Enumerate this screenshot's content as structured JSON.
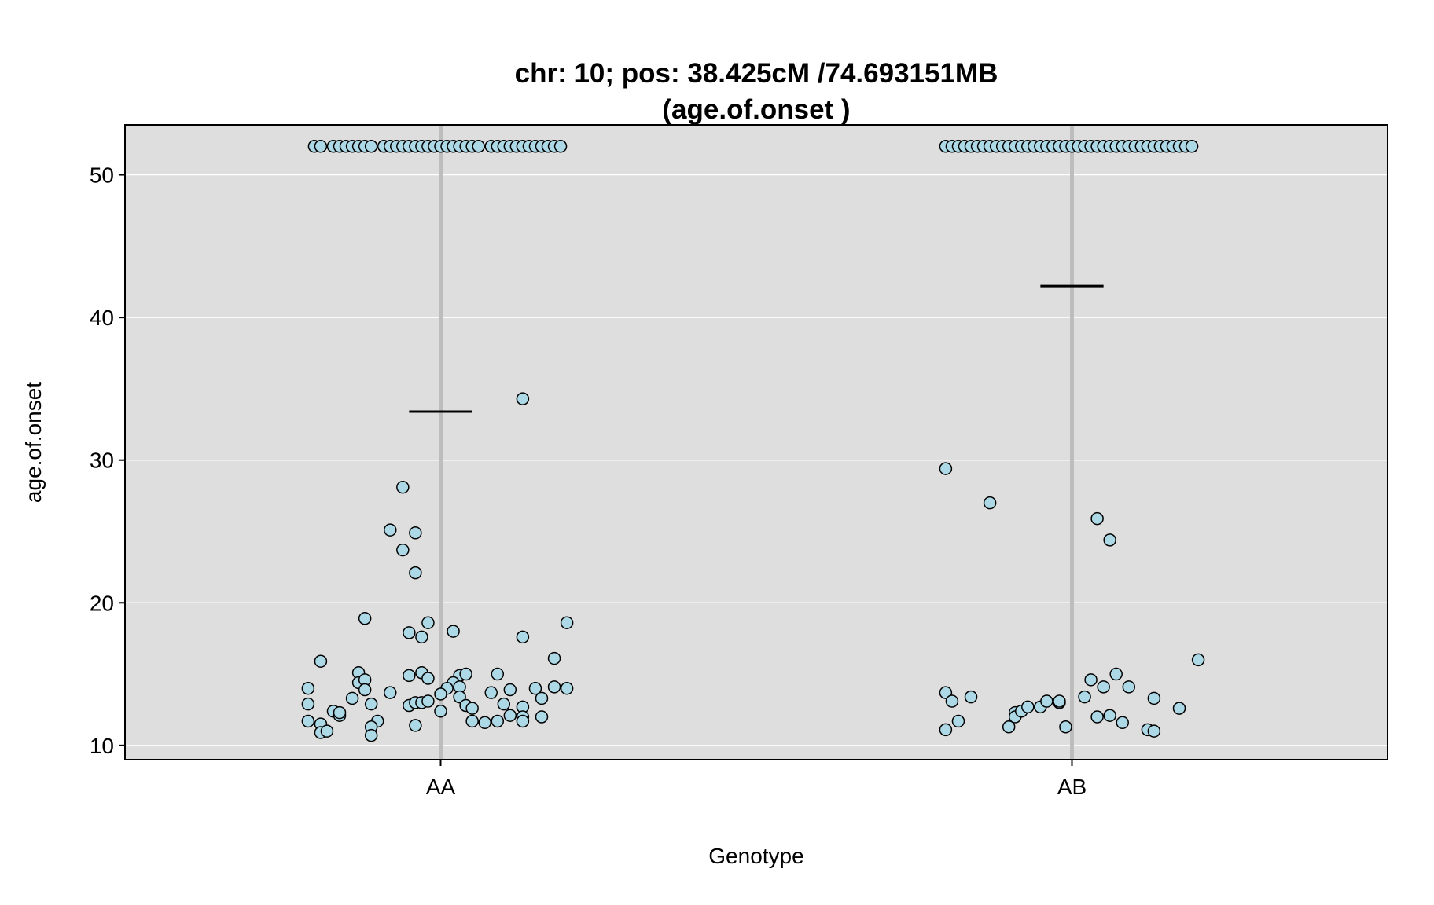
{
  "chart_data": {
    "type": "scatter",
    "title_line1": "chr: 10; pos: 38.425cM /74.693151MB",
    "title_line2": "(age.of.onset )",
    "xlabel": "Genotype",
    "ylabel": "age.of.onset",
    "categories": [
      "AA",
      "AB"
    ],
    "ylim": [
      9,
      53.5
    ],
    "yticks": [
      10,
      20,
      30,
      40,
      50
    ],
    "grid": true,
    "colors": {
      "panel": "#dedede",
      "point_fill": "#add8e6",
      "point_stroke": "#000000",
      "grid": "#ffffff",
      "category_line": "#bdbdbd",
      "mean_line": "#000000"
    },
    "means": [
      33.4,
      42.2
    ],
    "series": [
      {
        "category": "AA",
        "points": [
          [
            -0.2,
            52
          ],
          [
            -0.19,
            52
          ],
          [
            -0.17,
            52
          ],
          [
            -0.16,
            52
          ],
          [
            -0.15,
            52
          ],
          [
            -0.14,
            52
          ],
          [
            -0.13,
            52
          ],
          [
            -0.12,
            52
          ],
          [
            -0.11,
            52
          ],
          [
            -0.09,
            52
          ],
          [
            -0.08,
            52
          ],
          [
            -0.07,
            52
          ],
          [
            -0.06,
            52
          ],
          [
            -0.05,
            52
          ],
          [
            -0.04,
            52
          ],
          [
            -0.03,
            52
          ],
          [
            -0.02,
            52
          ],
          [
            -0.01,
            52
          ],
          [
            0.0,
            52
          ],
          [
            0.01,
            52
          ],
          [
            0.02,
            52
          ],
          [
            0.03,
            52
          ],
          [
            0.04,
            52
          ],
          [
            0.05,
            52
          ],
          [
            0.06,
            52
          ],
          [
            0.08,
            52
          ],
          [
            0.09,
            52
          ],
          [
            0.1,
            52
          ],
          [
            0.11,
            52
          ],
          [
            0.12,
            52
          ],
          [
            0.13,
            52
          ],
          [
            0.14,
            52
          ],
          [
            0.15,
            52
          ],
          [
            0.16,
            52
          ],
          [
            0.17,
            52
          ],
          [
            0.18,
            52
          ],
          [
            0.19,
            52
          ],
          [
            0.13,
            34.3
          ],
          [
            -0.06,
            28.1
          ],
          [
            -0.08,
            25.1
          ],
          [
            -0.04,
            24.9
          ],
          [
            -0.06,
            23.7
          ],
          [
            -0.04,
            22.1
          ],
          [
            -0.12,
            18.9
          ],
          [
            -0.02,
            18.6
          ],
          [
            0.02,
            18.0
          ],
          [
            0.2,
            18.6
          ],
          [
            -0.05,
            17.9
          ],
          [
            -0.03,
            17.6
          ],
          [
            0.13,
            17.6
          ],
          [
            -0.19,
            15.9
          ],
          [
            0.18,
            16.1
          ],
          [
            -0.13,
            15.1
          ],
          [
            -0.05,
            14.9
          ],
          [
            -0.03,
            15.1
          ],
          [
            0.03,
            14.9
          ],
          [
            0.04,
            15.0
          ],
          [
            0.09,
            15.0
          ],
          [
            -0.21,
            14.0
          ],
          [
            -0.13,
            14.4
          ],
          [
            -0.12,
            14.6
          ],
          [
            -0.12,
            13.9
          ],
          [
            -0.08,
            13.7
          ],
          [
            -0.02,
            14.7
          ],
          [
            0.02,
            14.4
          ],
          [
            0.03,
            14.1
          ],
          [
            0.01,
            14.0
          ],
          [
            0.11,
            13.9
          ],
          [
            0.15,
            14.0
          ],
          [
            0.18,
            14.1
          ],
          [
            0.2,
            14.0
          ],
          [
            -0.14,
            13.3
          ],
          [
            0.0,
            13.6
          ],
          [
            0.03,
            13.4
          ],
          [
            0.08,
            13.7
          ],
          [
            0.16,
            13.3
          ],
          [
            -0.21,
            12.9
          ],
          [
            -0.11,
            12.9
          ],
          [
            -0.05,
            12.8
          ],
          [
            -0.04,
            13.0
          ],
          [
            -0.03,
            13.0
          ],
          [
            -0.02,
            13.1
          ],
          [
            0.04,
            12.8
          ],
          [
            0.05,
            12.6
          ],
          [
            0.1,
            12.9
          ],
          [
            0.13,
            12.7
          ],
          [
            -0.17,
            12.4
          ],
          [
            -0.16,
            12.1
          ],
          [
            -0.16,
            12.3
          ],
          [
            0.0,
            12.4
          ],
          [
            0.11,
            12.1
          ],
          [
            0.13,
            12.0
          ],
          [
            0.16,
            12.0
          ],
          [
            -0.21,
            11.7
          ],
          [
            -0.19,
            11.5
          ],
          [
            -0.1,
            11.7
          ],
          [
            -0.11,
            11.3
          ],
          [
            -0.04,
            11.4
          ],
          [
            0.05,
            11.7
          ],
          [
            0.07,
            11.6
          ],
          [
            0.09,
            11.7
          ],
          [
            0.13,
            11.7
          ],
          [
            -0.19,
            10.9
          ],
          [
            -0.18,
            11.0
          ],
          [
            -0.11,
            10.7
          ]
        ]
      },
      {
        "category": "AB",
        "points": [
          [
            -0.2,
            52
          ],
          [
            -0.19,
            52
          ],
          [
            -0.18,
            52
          ],
          [
            -0.17,
            52
          ],
          [
            -0.16,
            52
          ],
          [
            -0.15,
            52
          ],
          [
            -0.14,
            52
          ],
          [
            -0.13,
            52
          ],
          [
            -0.12,
            52
          ],
          [
            -0.11,
            52
          ],
          [
            -0.1,
            52
          ],
          [
            -0.09,
            52
          ],
          [
            -0.08,
            52
          ],
          [
            -0.07,
            52
          ],
          [
            -0.06,
            52
          ],
          [
            -0.05,
            52
          ],
          [
            -0.04,
            52
          ],
          [
            -0.03,
            52
          ],
          [
            -0.02,
            52
          ],
          [
            -0.01,
            52
          ],
          [
            0.0,
            52
          ],
          [
            0.01,
            52
          ],
          [
            0.02,
            52
          ],
          [
            0.03,
            52
          ],
          [
            0.04,
            52
          ],
          [
            0.05,
            52
          ],
          [
            0.06,
            52
          ],
          [
            0.07,
            52
          ],
          [
            0.08,
            52
          ],
          [
            0.09,
            52
          ],
          [
            0.1,
            52
          ],
          [
            0.11,
            52
          ],
          [
            0.12,
            52
          ],
          [
            0.13,
            52
          ],
          [
            0.14,
            52
          ],
          [
            0.15,
            52
          ],
          [
            0.16,
            52
          ],
          [
            0.17,
            52
          ],
          [
            0.18,
            52
          ],
          [
            0.19,
            52
          ],
          [
            -0.2,
            29.4
          ],
          [
            -0.13,
            27.0
          ],
          [
            0.04,
            25.9
          ],
          [
            0.06,
            24.4
          ],
          [
            0.2,
            16.0
          ],
          [
            0.03,
            14.6
          ],
          [
            0.07,
            15.0
          ],
          [
            0.05,
            14.1
          ],
          [
            0.09,
            14.1
          ],
          [
            -0.2,
            13.7
          ],
          [
            -0.19,
            13.1
          ],
          [
            -0.16,
            13.4
          ],
          [
            0.02,
            13.4
          ],
          [
            0.13,
            13.3
          ],
          [
            0.17,
            12.6
          ],
          [
            -0.09,
            12.3
          ],
          [
            -0.09,
            12.0
          ],
          [
            -0.08,
            12.4
          ],
          [
            -0.07,
            12.7
          ],
          [
            -0.05,
            12.7
          ],
          [
            -0.04,
            13.1
          ],
          [
            -0.02,
            13.0
          ],
          [
            -0.02,
            13.1
          ],
          [
            0.04,
            12.0
          ],
          [
            0.06,
            12.1
          ],
          [
            -0.18,
            11.7
          ],
          [
            0.08,
            11.6
          ],
          [
            -0.2,
            11.1
          ],
          [
            -0.1,
            11.3
          ],
          [
            -0.01,
            11.3
          ],
          [
            0.12,
            11.1
          ],
          [
            0.13,
            11.0
          ]
        ]
      }
    ]
  }
}
